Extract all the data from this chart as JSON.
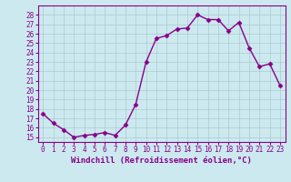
{
  "x": [
    0,
    1,
    2,
    3,
    4,
    5,
    6,
    7,
    8,
    9,
    10,
    11,
    12,
    13,
    14,
    15,
    16,
    17,
    18,
    19,
    20,
    21,
    22,
    23
  ],
  "y": [
    17.5,
    16.5,
    15.8,
    15.0,
    15.2,
    15.3,
    15.5,
    15.2,
    16.3,
    18.5,
    23.0,
    25.5,
    25.8,
    26.5,
    26.6,
    28.0,
    27.5,
    27.5,
    26.3,
    27.2,
    24.5,
    22.5,
    22.8,
    20.5
  ],
  "line_color": "#880088",
  "marker": "D",
  "markersize": 2.5,
  "linewidth": 1.0,
  "xlabel": "Windchill (Refroidissement éolien,°C)",
  "tick_fontsize": 5.5,
  "xlabel_fontsize": 6.5,
  "ylim": [
    14.5,
    29.0
  ],
  "xlim": [
    -0.5,
    23.5
  ],
  "yticks": [
    15,
    16,
    17,
    18,
    19,
    20,
    21,
    22,
    23,
    24,
    25,
    26,
    27,
    28
  ],
  "xticks": [
    0,
    1,
    2,
    3,
    4,
    5,
    6,
    7,
    8,
    9,
    10,
    11,
    12,
    13,
    14,
    15,
    16,
    17,
    18,
    19,
    20,
    21,
    22,
    23
  ],
  "bg_color": "#cce9f0",
  "grid_color": "#aacccc",
  "spine_color": "#880088"
}
